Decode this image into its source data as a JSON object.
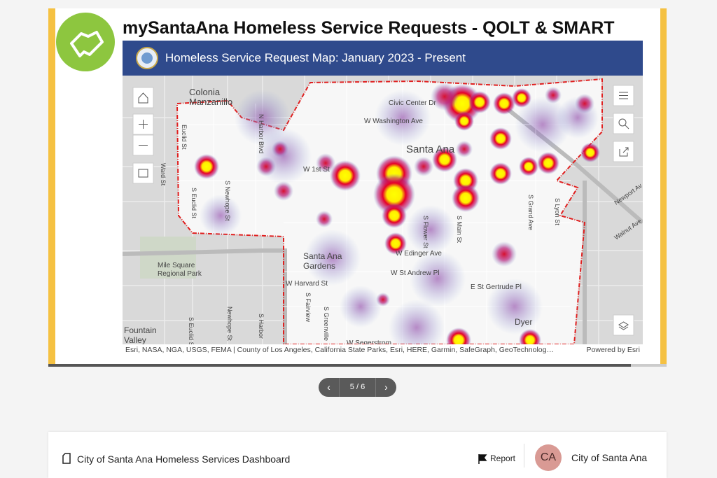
{
  "page": {
    "title": "mySantaAna Homeless Service Requests - QOLT & SMART",
    "map": {
      "header": "Homeless Service Request Map: January 2023 - Present",
      "labels": [
        "Colonia",
        "Manzanillo",
        "W 1st St",
        "Santa Ana",
        "W Washington Ave",
        "Civic Center Dr",
        "Santa Ana",
        "Gardens",
        "Mile Square",
        "Regional Park",
        "W Harvard St",
        "W St Andrew Pl",
        "E St Gertrude Pl",
        "Fountain",
        "Valley",
        "Dyer",
        "S Euclid St",
        "S Newhope St",
        "S Grand Ave",
        "W Edinger Ave",
        "W Segerstrom",
        "Ward St",
        "S Harbor",
        "S Fairview",
        "S Greenville",
        "S Lyon St",
        "Newport Av",
        "Walnut Ave",
        "S Euclid St",
        "Newhope St",
        "N Harbor Blvd",
        "Euclid St",
        "S Flower St",
        "S Main St"
      ],
      "attribution": "Esri, NASA, NGA, USGS, FEMA | County of Los Angeles, California State Parks, Esri, HERE, Garmin, SafeGraph, GeoTechnolog…",
      "powered": "Powered by Esri"
    },
    "pager": "5 / 6",
    "footer": {
      "title": "City of Santa Ana Homeless Services Dashboard",
      "report": "Report",
      "initials": "CA",
      "org": "City of Santa Ana"
    }
  }
}
